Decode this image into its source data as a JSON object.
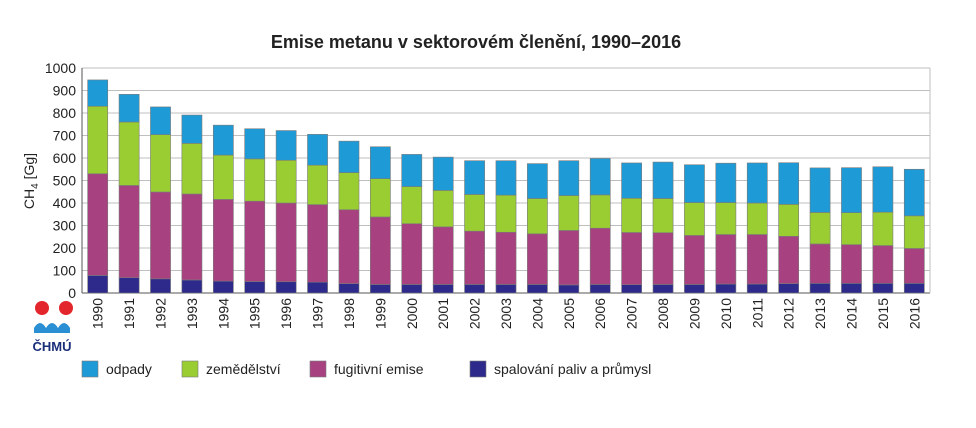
{
  "chart_data": {
    "type": "bar",
    "stacked": true,
    "title": "Emise metanu v sektorovém členění, 1990–2016",
    "ylabel": "CH4 [Gg]",
    "ylim": [
      0,
      1000
    ],
    "yticks": [
      0,
      100,
      200,
      300,
      400,
      500,
      600,
      700,
      800,
      900,
      1000
    ],
    "grid": true,
    "legend_position": "bottom",
    "categories": [
      "1990",
      "1991",
      "1992",
      "1993",
      "1994",
      "1995",
      "1996",
      "1997",
      "1998",
      "1999",
      "2000",
      "2001",
      "2002",
      "2003",
      "2004",
      "2005",
      "2006",
      "2007",
      "2008",
      "2009",
      "2010",
      "2011",
      "2012",
      "2013",
      "2014",
      "2015",
      "2016"
    ],
    "series": [
      {
        "name": "spalování paliv a průmysl",
        "color": "#2e2a8c",
        "values": [
          78,
          68,
          63,
          58,
          53,
          51,
          50,
          48,
          42,
          38,
          38,
          38,
          38,
          38,
          38,
          36,
          38,
          37,
          38,
          38,
          40,
          40,
          42,
          43,
          43,
          43,
          43
        ]
      },
      {
        "name": "fugitivní emise",
        "color": "#a8417f",
        "values": [
          452,
          410,
          386,
          382,
          363,
          357,
          350,
          345,
          328,
          300,
          270,
          256,
          237,
          232,
          225,
          242,
          250,
          232,
          230,
          218,
          220,
          220,
          210,
          175,
          172,
          168,
          155
        ]
      },
      {
        "name": "zemědělství",
        "color": "#9acd32",
        "values": [
          300,
          282,
          255,
          225,
          197,
          188,
          190,
          175,
          165,
          170,
          165,
          162,
          163,
          165,
          157,
          155,
          148,
          152,
          152,
          146,
          142,
          140,
          142,
          140,
          142,
          148,
          145
        ]
      },
      {
        "name": "odpady",
        "color": "#1e9ad6",
        "values": [
          117,
          123,
          123,
          126,
          133,
          134,
          132,
          137,
          140,
          142,
          143,
          148,
          150,
          153,
          155,
          155,
          162,
          157,
          162,
          168,
          175,
          178,
          185,
          198,
          200,
          202,
          207
        ]
      }
    ],
    "legend_order": [
      "odpady",
      "zemědělství",
      "fugitivní emise",
      "spalování paliv a průmysl"
    ]
  },
  "logo": {
    "text": "ČHMÚ"
  },
  "colors": {
    "grid": "#bfbfbf",
    "axis": "#555555",
    "bar_stroke": "#7a7a7a",
    "logo_red": "#e3262b",
    "logo_blue": "#2b8fd3"
  }
}
